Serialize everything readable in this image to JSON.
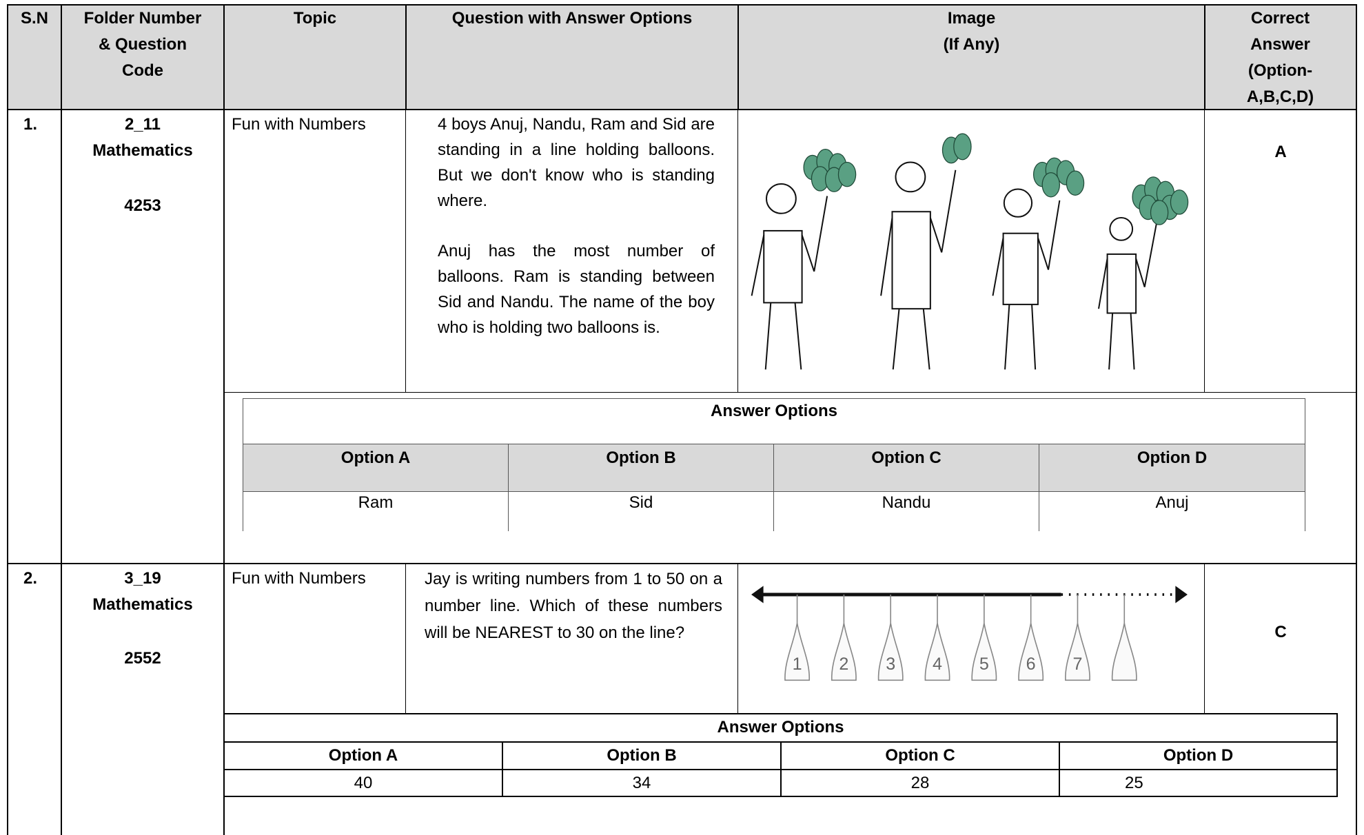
{
  "header": {
    "sn": "S.N",
    "folder": "Folder Number & Question Code",
    "topic": "Topic",
    "question": "Question with Answer Options",
    "image": [
      "Image",
      "(If Any)"
    ],
    "answer": "Correct Answer (Option-A,B,C,D)"
  },
  "questions": [
    {
      "sn": "1.",
      "folder": "2_11",
      "subject": "Mathematics",
      "code": "4253",
      "topic": "Fun with Numbers",
      "question": [
        "4 boys Anuj, Nandu, Ram and Sid are standing in a line holding balloons. But we don't know who is standing where.",
        "Anuj has the most number of balloons. Ram is standing between Sid and Nandu. The name of the boy who is holding two balloons is."
      ],
      "options_title": "Answer Options",
      "option_headers": [
        "Option A",
        "Option B",
        "Option C",
        "Option D"
      ],
      "options": [
        "Ram",
        "Sid",
        "Nandu",
        "Anuj"
      ],
      "answer": "A"
    },
    {
      "sn": "2.",
      "folder": "3_19",
      "subject": "Mathematics",
      "code": "2552",
      "topic": "Fun with Numbers",
      "question": [
        "Jay is writing numbers from 1 to 50 on a number line. Which of these numbers will be NEAREST to 30 on the line?"
      ],
      "image_labels": [
        "1",
        "2",
        "3",
        "4",
        "5",
        "6",
        "7"
      ],
      "options_title": "Answer Options",
      "option_headers": [
        "Option A",
        "Option B",
        "Option C",
        "Option D"
      ],
      "options": [
        "40",
        "34",
        "28",
        "25"
      ],
      "answer": "C"
    }
  ]
}
